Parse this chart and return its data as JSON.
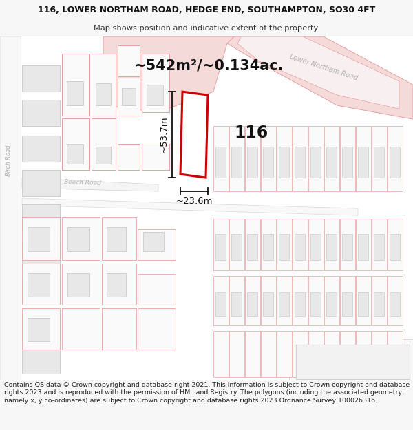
{
  "title_line1": "116, LOWER NORTHAM ROAD, HEDGE END, SOUTHAMPTON, SO30 4FT",
  "title_line2": "Map shows position and indicative extent of the property.",
  "footer_text": "Contains OS data © Crown copyright and database right 2021. This information is subject to Crown copyright and database rights 2023 and is reproduced with the permission of HM Land Registry. The polygons (including the associated geometry, namely x, y co-ordinates) are subject to Crown copyright and database rights 2023 Ordnance Survey 100026316.",
  "area_label": "~542m²/~0.134ac.",
  "number_label": "116",
  "width_label": "~23.6m",
  "height_label": "~53.7m",
  "bg_color": "#f7f7f7",
  "map_bg": "#ffffff",
  "pink_fill": "#f5dada",
  "pink_stroke": "#e8a0a0",
  "gray_fill": "#e8e8e8",
  "gray_stroke": "#cccccc",
  "subject_stroke": "#cc0000",
  "subject_fill": "#ffffff",
  "road_label_color": "#aaaaaa",
  "dim_line_color": "#111111",
  "title_fontsize": 9.0,
  "subtitle_fontsize": 8.2,
  "footer_fontsize": 6.8,
  "area_fontsize": 15,
  "number_fontsize": 17,
  "dim_fontsize": 9.5
}
